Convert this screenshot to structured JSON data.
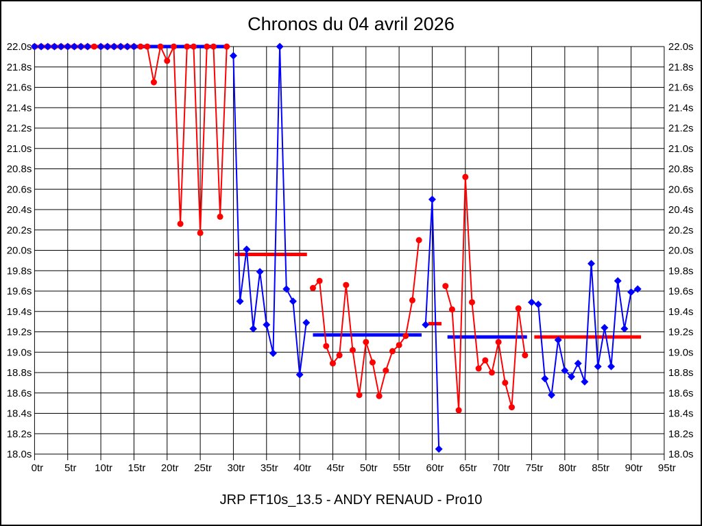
{
  "page": {
    "title": "Chronos du 04 avril 2026",
    "footer": "JRP FT10s_13.5 - ANDY RENAUD - Pro10"
  },
  "chart_data": {
    "type": "line",
    "title": "Chronos du 04 avril 2026",
    "subtitle": "JRP FT10s_13.5 - ANDY RENAUD - Pro10",
    "x_unit": "tr",
    "y_unit": "s",
    "xlim": [
      0,
      95
    ],
    "ylim": [
      18.0,
      22.0
    ],
    "x_tick_step": 5,
    "y_tick_step": 0.2,
    "grid": true,
    "legend": "none",
    "clip_max": 22.0,
    "x_tick_labels": [
      "0tr",
      "5tr",
      "10tr",
      "15tr",
      "20tr",
      "25tr",
      "30tr",
      "35tr",
      "40tr",
      "45tr",
      "50tr",
      "55tr",
      "60tr",
      "65tr",
      "70tr",
      "75tr",
      "80tr",
      "85tr",
      "90tr",
      "95tr"
    ],
    "y_tick_labels": [
      "22.0s",
      "21.8s",
      "21.6s",
      "21.4s",
      "21.2s",
      "21.0s",
      "20.8s",
      "20.6s",
      "20.4s",
      "20.2s",
      "20.0s",
      "19.8s",
      "19.6s",
      "19.4s",
      "19.2s",
      "19.0s",
      "18.8s",
      "18.6s",
      "18.4s",
      "18.2s",
      "18.0s"
    ],
    "series": [
      {
        "name": "red-laps",
        "color": "#ff0000",
        "marker": "circle",
        "points": [
          [
            0,
            22.0
          ],
          [
            1,
            22.0
          ],
          [
            2,
            22.0
          ],
          [
            3,
            22.0
          ],
          [
            4,
            22.0
          ],
          [
            5,
            22.0
          ],
          [
            6,
            22.0
          ],
          [
            7,
            22.0
          ],
          [
            8,
            22.0
          ],
          [
            9,
            22.0
          ],
          [
            10,
            22.0
          ],
          [
            11,
            22.0
          ],
          [
            12,
            22.0
          ],
          [
            13,
            22.0
          ],
          [
            14,
            22.0
          ],
          [
            15,
            22.0
          ],
          [
            16,
            22.0
          ],
          [
            17,
            22.0
          ],
          [
            18,
            21.65
          ],
          [
            19,
            22.0
          ],
          [
            20,
            21.86
          ],
          [
            21,
            22.0
          ],
          [
            22,
            20.26
          ],
          [
            23,
            22.0
          ],
          [
            24,
            22.0
          ],
          [
            25,
            20.17
          ],
          [
            26,
            22.0
          ],
          [
            27,
            22.0
          ],
          [
            28,
            20.33
          ],
          [
            29,
            22.0
          ],
          [
            42,
            19.63
          ],
          [
            43,
            19.7
          ],
          [
            44,
            19.06
          ],
          [
            45,
            18.89
          ],
          [
            46,
            18.97
          ],
          [
            47,
            19.66
          ],
          [
            48,
            19.02
          ],
          [
            49,
            18.58
          ],
          [
            50,
            19.1
          ],
          [
            51,
            18.9
          ],
          [
            52,
            18.57
          ],
          [
            53,
            18.82
          ],
          [
            54,
            19.01
          ],
          [
            55,
            19.07
          ],
          [
            56,
            19.16
          ],
          [
            57,
            19.51
          ],
          [
            58,
            20.1
          ],
          [
            62,
            19.65
          ],
          [
            63,
            19.42
          ],
          [
            64,
            18.43
          ],
          [
            65,
            20.72
          ],
          [
            66,
            19.49
          ],
          [
            67,
            18.84
          ],
          [
            68,
            18.92
          ],
          [
            69,
            18.8
          ],
          [
            70,
            19.1
          ],
          [
            71,
            18.7
          ],
          [
            72,
            18.46
          ],
          [
            73,
            19.43
          ],
          [
            74,
            18.97
          ]
        ]
      },
      {
        "name": "blue-laps",
        "color": "#0000ff",
        "marker": "diamond",
        "points": [
          [
            0,
            22.0
          ],
          [
            1,
            22.0
          ],
          [
            2,
            22.0
          ],
          [
            3,
            22.0
          ],
          [
            4,
            22.0
          ],
          [
            5,
            22.0
          ],
          [
            6,
            22.0
          ],
          [
            7,
            22.0
          ],
          [
            8,
            22.0
          ],
          [
            10,
            22.0
          ],
          [
            11,
            22.0
          ],
          [
            12,
            22.0
          ],
          [
            13,
            22.0
          ],
          [
            14,
            22.0
          ],
          [
            15,
            22.0
          ],
          [
            30,
            21.91
          ],
          [
            31,
            19.5
          ],
          [
            32,
            20.01
          ],
          [
            33,
            19.23
          ],
          [
            34,
            19.79
          ],
          [
            35,
            19.27
          ],
          [
            36,
            18.99
          ],
          [
            37,
            22.0
          ],
          [
            38,
            19.62
          ],
          [
            39,
            19.5
          ],
          [
            40,
            18.78
          ],
          [
            41,
            19.29
          ],
          [
            59,
            19.27
          ],
          [
            60,
            20.5
          ],
          [
            61,
            18.05
          ],
          [
            75,
            19.49
          ],
          [
            76,
            19.47
          ],
          [
            77,
            18.74
          ],
          [
            78,
            18.58
          ],
          [
            79,
            19.12
          ],
          [
            80,
            18.82
          ],
          [
            81,
            18.76
          ],
          [
            82,
            18.89
          ],
          [
            83,
            18.71
          ],
          [
            84,
            19.87
          ],
          [
            85,
            18.86
          ],
          [
            86,
            19.24
          ],
          [
            87,
            18.86
          ],
          [
            88,
            19.7
          ],
          [
            89,
            19.23
          ],
          [
            90,
            19.59
          ],
          [
            91,
            19.62
          ]
        ]
      }
    ],
    "average_bars": [
      {
        "color": "#ff0000",
        "from": 0.0,
        "to": 15.1,
        "y": 22.0
      },
      {
        "color": "#0000ff",
        "from": 15.1,
        "to": 29.3,
        "y": 22.0
      },
      {
        "color": "#ff0000",
        "from": 30.2,
        "to": 41.1,
        "y": 19.96
      },
      {
        "color": "#0000ff",
        "from": 42.0,
        "to": 58.4,
        "y": 19.17
      },
      {
        "color": "#ff0000",
        "from": 59.4,
        "to": 61.4,
        "y": 19.28
      },
      {
        "color": "#0000ff",
        "from": 62.3,
        "to": 74.3,
        "y": 19.15
      },
      {
        "color": "#ff0000",
        "from": 75.4,
        "to": 91.5,
        "y": 19.15
      }
    ]
  }
}
